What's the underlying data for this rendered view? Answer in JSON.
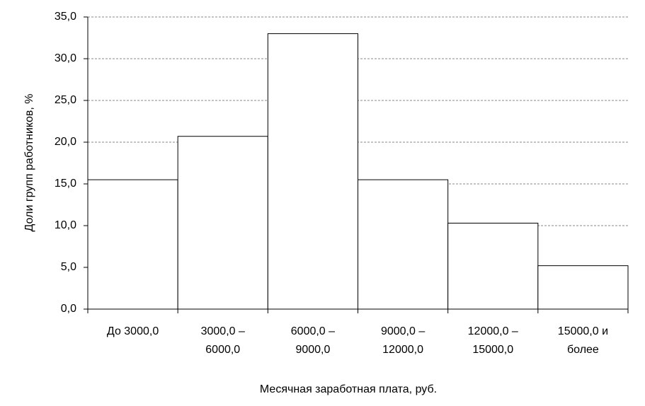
{
  "chart_data": {
    "type": "bar",
    "categories": [
      "До 3000,0",
      "3000,0 –\n6000,0",
      "6000,0 –\n9000,0",
      "9000,0 –\n12000,0",
      "12000,0 –\n15000,0",
      "15000,0 и\nболее"
    ],
    "values": [
      15.5,
      20.7,
      33.0,
      15.5,
      10.3,
      5.2
    ],
    "color": "#ffffff",
    "ylim": [
      0,
      35
    ],
    "yticks": [
      {
        "value": 0,
        "label": "0,0"
      },
      {
        "value": 5,
        "label": "5,0"
      },
      {
        "value": 10,
        "label": "10,0"
      },
      {
        "value": 15,
        "label": "15,0"
      },
      {
        "value": 20,
        "label": "20,0"
      },
      {
        "value": 25,
        "label": "25,0"
      },
      {
        "value": 30,
        "label": "30,0"
      },
      {
        "value": 35,
        "label": "35,0"
      }
    ],
    "grid": true,
    "x_label": "Месячная заработная плата, руб.",
    "y_label": "Доли групп работников, %"
  }
}
